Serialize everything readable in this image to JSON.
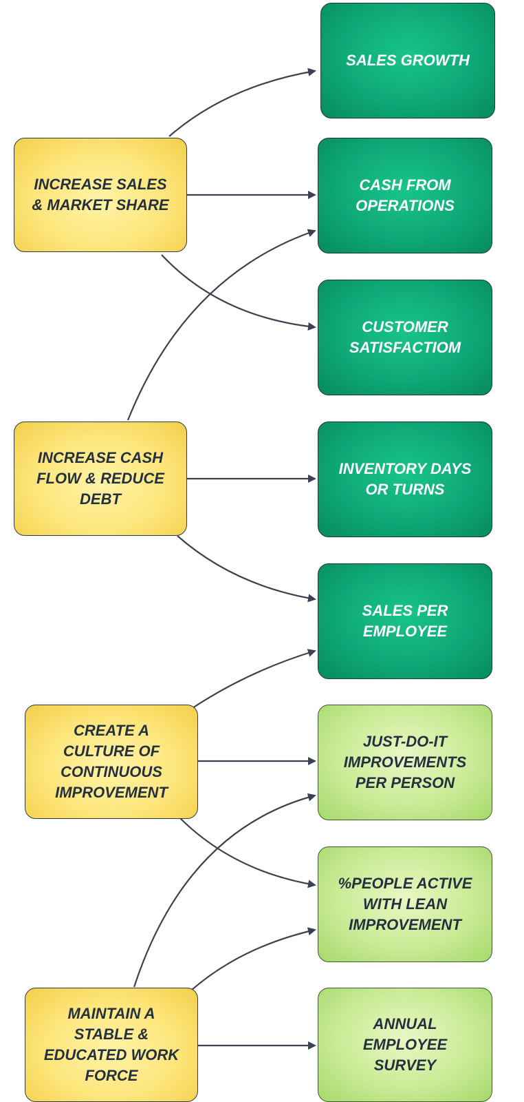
{
  "goals": [
    {
      "id": "g1",
      "label": "INCREASE SALES\n& MARKET SHARE"
    },
    {
      "id": "g2",
      "label": "INCREASE CASH\nFLOW & REDUCE\nDEBT"
    },
    {
      "id": "g3",
      "label": "CREATE A\nCULTURE OF\nCONTINUOUS\nIMPROVEMENT"
    },
    {
      "id": "g4",
      "label": "MAINTAIN A\nSTABLE &\nEDUCATED WORK\nFORCE"
    }
  ],
  "kpis": [
    {
      "id": "k1",
      "label": "SALES GROWTH"
    },
    {
      "id": "k2",
      "label": "CASH FROM\nOPERATIONS"
    },
    {
      "id": "k3",
      "label": "CUSTOMER\nSATISFACTIOM"
    },
    {
      "id": "k4",
      "label": "INVENTORY DAYS\nOR TURNS"
    },
    {
      "id": "k5",
      "label": "SALES PER\nEMPLOYEE"
    },
    {
      "id": "k6",
      "label": "JUST-DO-IT\nIMPROVEMENTS\nPER PERSON"
    },
    {
      "id": "k7",
      "label": "%PEOPLE ACTIVE\nWITH LEAN\nIMPROVEMENT"
    },
    {
      "id": "k8",
      "label": "ANNUAL\nEMPLOYEE\nSURVEY"
    }
  ],
  "colors": {
    "goal_fill": "#fde57a",
    "kpi_dark_fill": "#0ea877",
    "kpi_light_fill": "#c9eb96",
    "arrow": "#3b4150"
  },
  "connections": [
    {
      "from": "g1",
      "to": "k1"
    },
    {
      "from": "g1",
      "to": "k2"
    },
    {
      "from": "g1",
      "to": "k3"
    },
    {
      "from": "g2",
      "to": "k2"
    },
    {
      "from": "g2",
      "to": "k4"
    },
    {
      "from": "g2",
      "to": "k5"
    },
    {
      "from": "g3",
      "to": "k5"
    },
    {
      "from": "g3",
      "to": "k6"
    },
    {
      "from": "g3",
      "to": "k7"
    },
    {
      "from": "g4",
      "to": "k6"
    },
    {
      "from": "g4",
      "to": "k7"
    },
    {
      "from": "g4",
      "to": "k8"
    }
  ]
}
